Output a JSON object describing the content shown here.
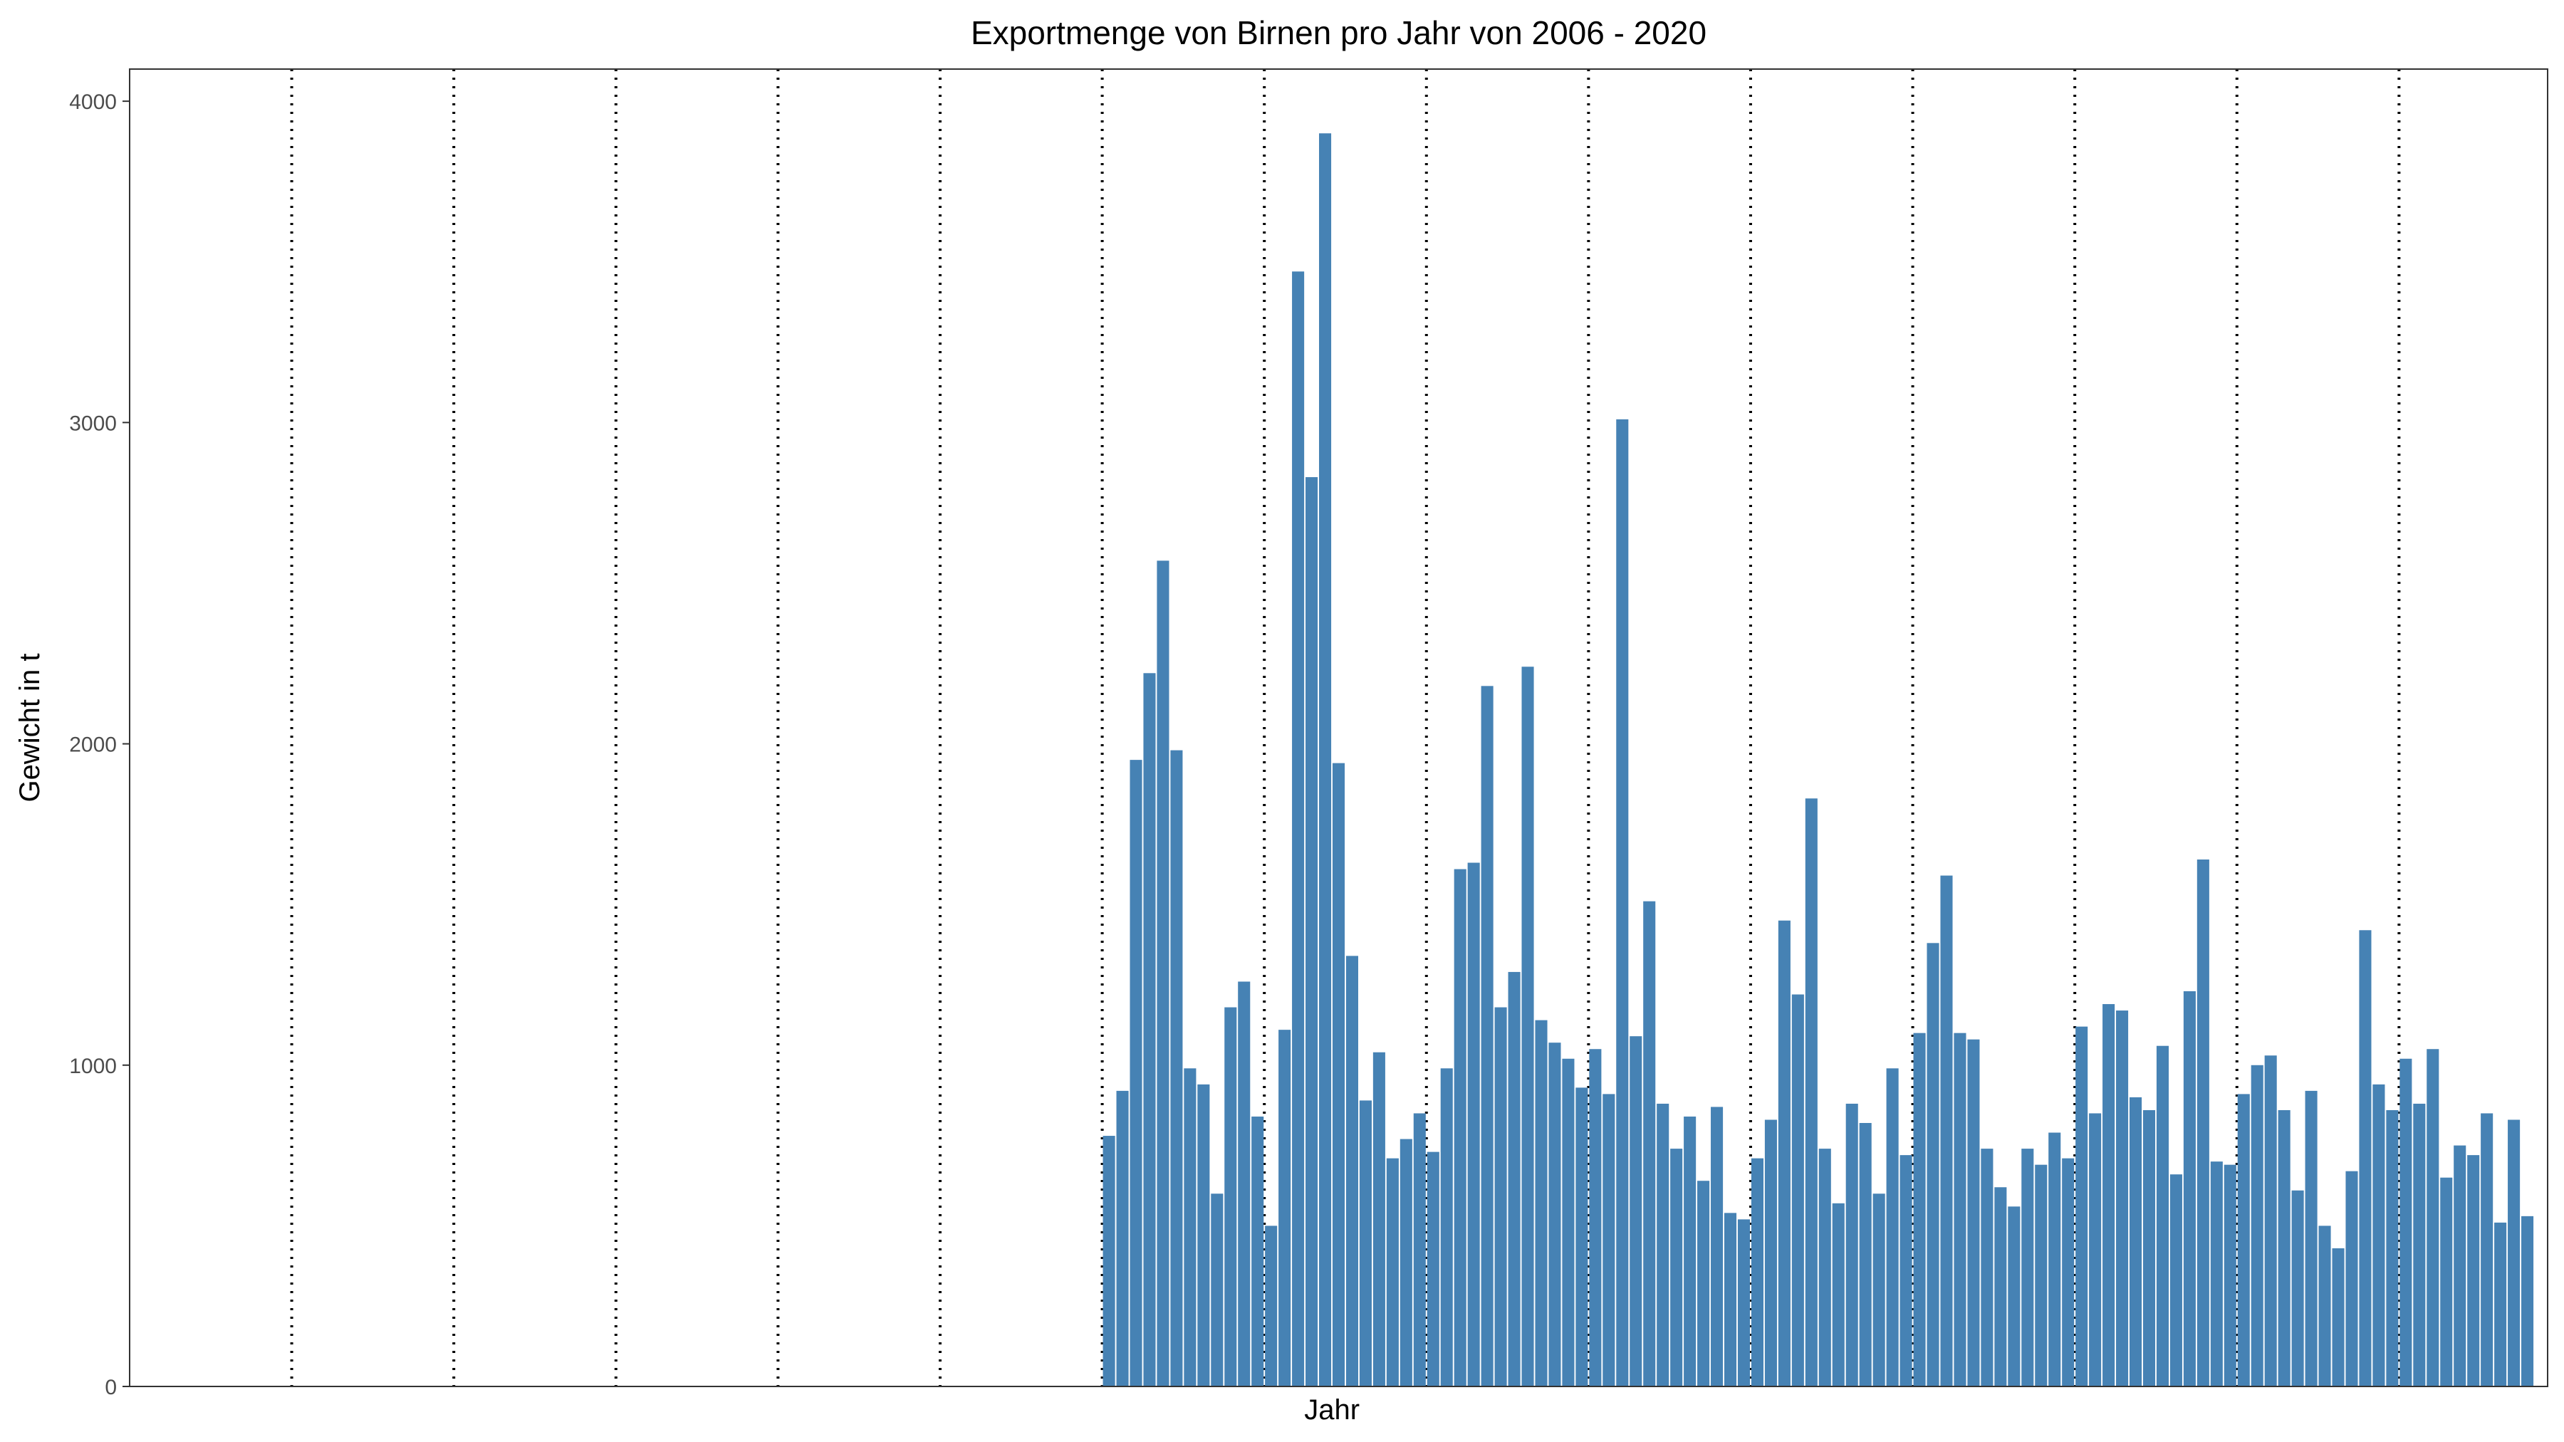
{
  "chart_data": {
    "type": "bar",
    "title": "Exportmenge von Birnen pro Jahr von 2006 - 2020",
    "xlabel": "Jahr",
    "ylabel": "Gewicht in t",
    "ylim": [
      0,
      4100
    ],
    "yticks": [
      0,
      1000,
      2000,
      3000,
      4000
    ],
    "grid": "vertical dotted lines at year boundaries",
    "legend": "none",
    "bar_color": "#4682B4",
    "year_boundaries": [
      2007,
      2008,
      2009,
      2010,
      2011,
      2012,
      2013,
      2014,
      2015,
      2016,
      2017,
      2018,
      2019,
      2020
    ],
    "x_range": [
      "2006-01",
      "2020-11"
    ],
    "series": [
      {
        "start_month": "2012-01",
        "values": [
          780,
          920,
          1950,
          2220,
          2570,
          1980,
          990,
          940,
          600,
          1180,
          1260,
          840,
          500,
          1110,
          3470,
          2830,
          3900,
          1940,
          1340,
          890,
          1040,
          710,
          770,
          850,
          730,
          990,
          1610,
          1630,
          2180,
          1180,
          1290,
          2240,
          1140,
          1070,
          1020,
          930,
          1050,
          910,
          3010,
          1090,
          1510,
          880,
          740,
          840,
          640,
          870,
          540,
          520,
          710,
          830,
          1450,
          1220,
          1830,
          740,
          570,
          880,
          820,
          600,
          990,
          720,
          1100,
          1380,
          1590,
          1100,
          1080,
          740,
          620,
          560,
          740,
          690,
          790,
          710,
          1120,
          850,
          1190,
          1170,
          900,
          860,
          1060,
          660,
          1230,
          1640,
          700,
          690,
          910,
          1000,
          1030,
          860,
          610,
          920,
          500,
          430,
          670,
          1420,
          940,
          860,
          1020,
          880,
          1050,
          650,
          750,
          720,
          850,
          510,
          830,
          530
        ]
      }
    ]
  }
}
